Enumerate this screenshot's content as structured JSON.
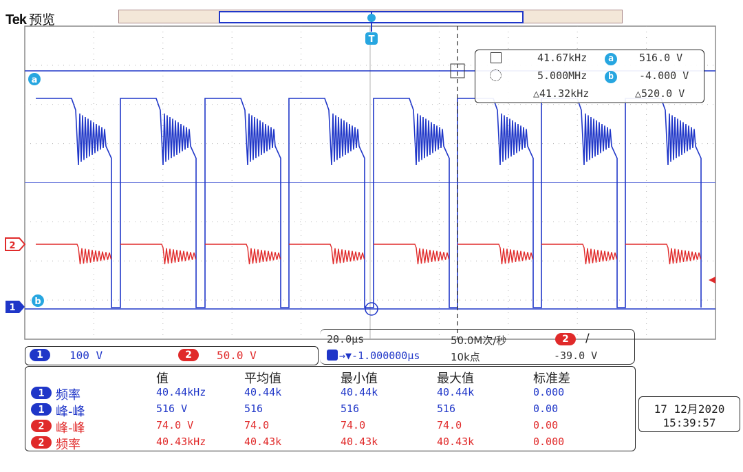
{
  "header": {
    "brand": "Tek",
    "mode": "预览"
  },
  "trigger_marker": "T",
  "markers": {
    "cursor_a": "a",
    "cursor_b": "b",
    "ch2_level": "2",
    "ch1_level": "1"
  },
  "cursor_readout": {
    "freq_a": "41.67kHz",
    "freq_b": "5.000MHz",
    "freq_delta": "△41.32kHz",
    "volt_a_label": "a",
    "volt_a": "516.0 V",
    "volt_b_label": "b",
    "volt_b": "-4.000 V",
    "volt_delta": "△520.0 V"
  },
  "channel_scale": {
    "ch1_label": "1",
    "ch1_scale": "100 V",
    "ch2_label": "2",
    "ch2_scale": "50.0 V"
  },
  "timebase": {
    "time_div": "20.0μs",
    "sample_rate": "50.0M次/秒",
    "trig_ch": "2",
    "trig_slope": "/",
    "position": "→▼-1.000000μs",
    "record_length": "10k点",
    "trig_level": "-39.0 V"
  },
  "measurements": {
    "headers": [
      "值",
      "平均值",
      "最小值",
      "最大值",
      "标准差"
    ],
    "rows": [
      {
        "ch": "1",
        "name": "频率",
        "values": [
          "40.44kHz",
          "40.44k",
          "40.44k",
          "40.44k",
          "0.000"
        ]
      },
      {
        "ch": "1",
        "name": "峰-峰",
        "values": [
          "516 V",
          "516",
          "516",
          "516",
          "0.00"
        ]
      },
      {
        "ch": "2",
        "name": "峰-峰",
        "values": [
          "74.0 V",
          "74.0",
          "74.0",
          "74.0",
          "0.00"
        ]
      },
      {
        "ch": "2",
        "name": "频率",
        "values": [
          "40.43kHz",
          "40.43k",
          "40.43k",
          "40.43k",
          "0.000"
        ]
      }
    ]
  },
  "datetime": {
    "date": "17 12月2020",
    "time": "15:39:57"
  },
  "colors": {
    "ch1": "#1f36c8",
    "ch2": "#e02a2a",
    "cursor": "#27a6e0",
    "grid": "#b0b0b0"
  }
}
